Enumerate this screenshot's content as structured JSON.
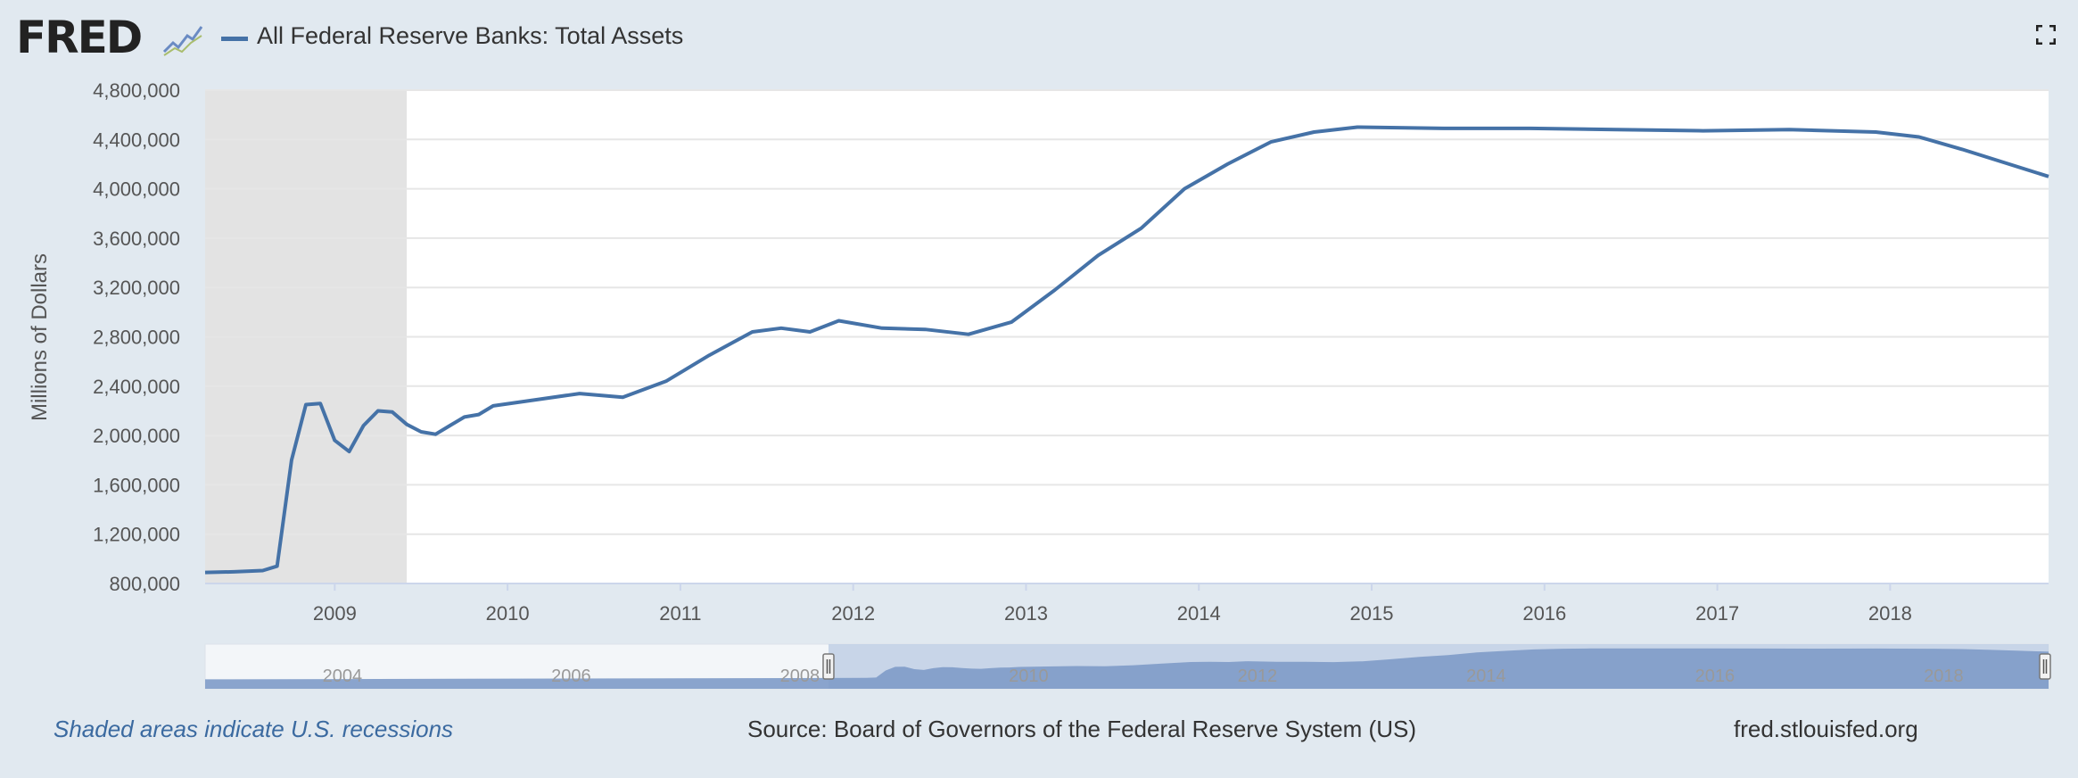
{
  "header": {
    "logo_text": "FRED",
    "legend_label": "All Federal Reserve Banks: Total Assets",
    "series_color": "#4572a7"
  },
  "footer": {
    "note": "Shaded areas indicate U.S. recessions",
    "source": "Source: Board of Governors of the Federal Reserve System (US)",
    "url": "fred.stlouisfed.org"
  },
  "navigator": {
    "tick_labels": [
      "2004",
      "2006",
      "2008",
      "2010",
      "2012",
      "2014",
      "2016",
      "2018"
    ],
    "selected_range": [
      "2008-04",
      "2018-12"
    ]
  },
  "chart_data": {
    "type": "line",
    "title": "",
    "xlabel": "",
    "ylabel": "Millions of Dollars",
    "ylim": [
      800000,
      4800000
    ],
    "xlim": [
      "2008-04",
      "2018-12"
    ],
    "x_ticks": [
      "2009",
      "2010",
      "2011",
      "2012",
      "2013",
      "2014",
      "2015",
      "2016",
      "2017",
      "2018"
    ],
    "y_ticks": [
      "800,000",
      "1,200,000",
      "1,600,000",
      "2,000,000",
      "2,400,000",
      "2,800,000",
      "3,200,000",
      "3,600,000",
      "4,000,000",
      "4,400,000",
      "4,800,000"
    ],
    "recession_shading": [
      [
        "2008-04",
        "2009-06"
      ]
    ],
    "grid": true,
    "legend": "top-left",
    "series": [
      {
        "name": "All Federal Reserve Banks: Total Assets",
        "color": "#4572a7",
        "x": [
          "2008-04",
          "2008-06",
          "2008-08",
          "2008-09",
          "2008-10",
          "2008-11",
          "2008-12",
          "2009-01",
          "2009-02",
          "2009-03",
          "2009-04",
          "2009-05",
          "2009-06",
          "2009-07",
          "2009-08",
          "2009-09",
          "2009-10",
          "2009-11",
          "2009-12",
          "2010-03",
          "2010-06",
          "2010-09",
          "2010-12",
          "2011-03",
          "2011-06",
          "2011-08",
          "2011-10",
          "2011-12",
          "2012-03",
          "2012-06",
          "2012-09",
          "2012-12",
          "2013-03",
          "2013-06",
          "2013-09",
          "2013-12",
          "2014-03",
          "2014-06",
          "2014-09",
          "2014-12",
          "2015-06",
          "2015-12",
          "2016-06",
          "2016-12",
          "2017-06",
          "2017-12",
          "2018-03",
          "2018-06",
          "2018-09",
          "2018-12"
        ],
        "y": [
          890000,
          895000,
          905000,
          940000,
          1800000,
          2250000,
          2260000,
          1960000,
          1870000,
          2080000,
          2200000,
          2190000,
          2090000,
          2030000,
          2010000,
          2080000,
          2150000,
          2170000,
          2240000,
          2290000,
          2340000,
          2310000,
          2440000,
          2650000,
          2840000,
          2870000,
          2840000,
          2930000,
          2870000,
          2860000,
          2820000,
          2920000,
          3180000,
          3460000,
          3680000,
          4000000,
          4200000,
          4380000,
          4460000,
          4500000,
          4490000,
          4490000,
          4480000,
          4470000,
          4480000,
          4460000,
          4420000,
          4320000,
          4210000,
          4100000
        ]
      }
    ]
  }
}
